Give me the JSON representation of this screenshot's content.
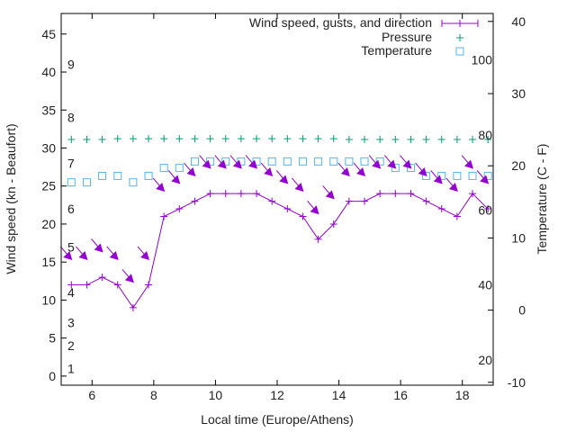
{
  "chart_data": {
    "type": "line",
    "title": "",
    "xlabel": "Local time (Europe/Athens)",
    "ylabel": "Wind speed (kn - Beaufort)",
    "y2label": "Temperature (C - F)",
    "xlim": [
      5,
      19
    ],
    "ylim": [
      -1.2,
      47.7
    ],
    "y2lim": [
      -10.4,
      41.1
    ],
    "x_ticks": [
      6,
      8,
      10,
      12,
      14,
      16,
      18
    ],
    "y_ticks": [
      0,
      5,
      10,
      15,
      20,
      25,
      30,
      35,
      40,
      45
    ],
    "y2_ticks": [
      -10,
      0,
      10,
      20,
      30,
      40
    ],
    "beaufort_labels": [
      {
        "label": "1",
        "kn": 1
      },
      {
        "label": "2",
        "kn": 4
      },
      {
        "label": "3",
        "kn": 7
      },
      {
        "label": "4",
        "kn": 11
      },
      {
        "label": "5",
        "kn": 17
      },
      {
        "label": "6",
        "kn": 22
      },
      {
        "label": "7",
        "kn": 28
      },
      {
        "label": "8",
        "kn": 34
      },
      {
        "label": "9",
        "kn": 41
      }
    ],
    "fahrenheit_labels": [
      {
        "label": "20",
        "f": 20
      },
      {
        "label": "40",
        "f": 40
      },
      {
        "label": "60",
        "f": 60
      },
      {
        "label": "80",
        "f": 80
      },
      {
        "label": "100",
        "f": 100
      }
    ],
    "legend_position": "top-right",
    "x": [
      5.33,
      5.83,
      6.33,
      6.83,
      7.33,
      7.83,
      8.33,
      8.83,
      9.33,
      9.83,
      10.33,
      10.83,
      11.33,
      11.83,
      12.33,
      12.83,
      13.33,
      13.83,
      14.33,
      14.83,
      15.33,
      15.83,
      16.33,
      16.83,
      17.33,
      17.83,
      18.33,
      18.83
    ],
    "series": [
      {
        "name": "Wind speed, gusts, and direction",
        "color": "#9400d3",
        "values": [
          12,
          12,
          13,
          12,
          9,
          12,
          21,
          22,
          23,
          24,
          24,
          24,
          24,
          23,
          22,
          21,
          18,
          20,
          23,
          23,
          24,
          24,
          24,
          23,
          22,
          21,
          24,
          22
        ],
        "gusts": [
          15.5,
          15.5,
          16.5,
          15.5,
          12.5,
          15.5,
          24.5,
          25.5,
          26.5,
          27.5,
          27.5,
          27.5,
          27.5,
          26.5,
          25.5,
          24.5,
          21.5,
          23.5,
          26.5,
          26.5,
          27.5,
          27.5,
          27.5,
          26.5,
          25.5,
          24.5,
          27.5,
          25.5
        ],
        "direction": "NW"
      },
      {
        "name": "Pressure",
        "color": "#009e73",
        "axis": "fahrenheit-scale",
        "values": [
          78.8,
          78.8,
          78.8,
          79,
          79,
          79,
          79,
          79,
          79,
          79,
          79,
          79,
          79,
          79,
          79,
          79,
          79,
          79,
          78.8,
          78.8,
          78.8,
          78.8,
          78.8,
          78.8,
          78.8,
          78.8,
          78.8,
          78.8
        ]
      },
      {
        "name": "Temperature",
        "color": "#56b4e9",
        "axis": "y2",
        "values": [
          17.7,
          17.7,
          18.6,
          18.6,
          17.7,
          18.6,
          19.7,
          19.7,
          20.6,
          20.6,
          20.6,
          20.6,
          20.6,
          20.6,
          20.6,
          20.6,
          20.6,
          20.6,
          20.6,
          20.6,
          20.6,
          19.7,
          19.7,
          18.6,
          18.6,
          18.6,
          18.6,
          18.6
        ]
      }
    ]
  }
}
